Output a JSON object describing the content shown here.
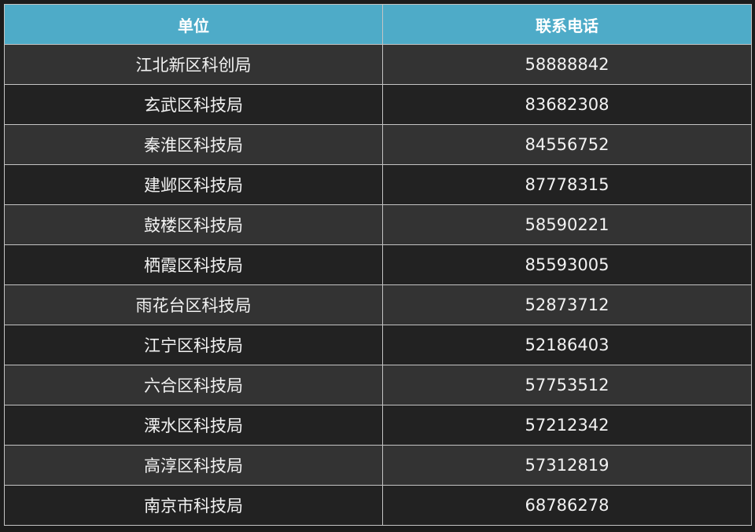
{
  "colors": {
    "header_bg": "#4eabc8",
    "row_light": "#333333",
    "row_dark": "#222222",
    "border": "#c4c4c4"
  },
  "table": {
    "headers": [
      "单位",
      "联系电话"
    ],
    "rows": [
      [
        "江北新区科创局",
        "58888842"
      ],
      [
        "玄武区科技局",
        "83682308"
      ],
      [
        "秦淮区科技局",
        "84556752"
      ],
      [
        "建邺区科技局",
        "87778315"
      ],
      [
        "鼓楼区科技局",
        "58590221"
      ],
      [
        "栖霞区科技局",
        "85593005"
      ],
      [
        "雨花台区科技局",
        "52873712"
      ],
      [
        "江宁区科技局",
        "52186403"
      ],
      [
        "六合区科技局",
        "57753512"
      ],
      [
        "溧水区科技局",
        "57212342"
      ],
      [
        "高淳区科技局",
        "57312819"
      ],
      [
        "南京市科技局",
        "68786278"
      ]
    ]
  }
}
